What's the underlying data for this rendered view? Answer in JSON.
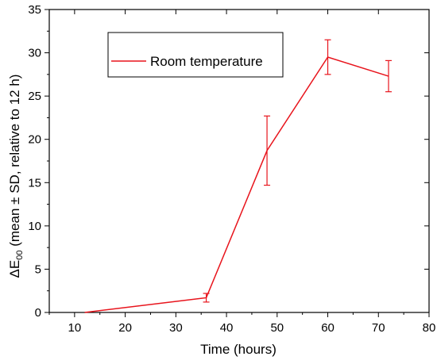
{
  "chart_data": {
    "type": "line",
    "xlabel": "Time (hours)",
    "ylabel": {
      "prefix": "ΔE",
      "subscript": "00",
      "suffix": " (mean ± SD, relative to 12 h)"
    },
    "xlim": [
      5,
      80
    ],
    "ylim": [
      0,
      35
    ],
    "xticks": [
      10,
      20,
      30,
      40,
      50,
      60,
      70,
      80
    ],
    "yticks": [
      0,
      5,
      10,
      15,
      20,
      25,
      30,
      35
    ],
    "grid": false,
    "legend_position": "top-left",
    "series": [
      {
        "name": "Room temperature",
        "color": "#e8141c",
        "points": [
          {
            "x": 12,
            "y": 0.0,
            "sd": 0.0
          },
          {
            "x": 36,
            "y": 1.7,
            "sd": 0.5
          },
          {
            "x": 48,
            "y": 18.7,
            "sd": 4.0
          },
          {
            "x": 60,
            "y": 29.5,
            "sd": 2.0
          },
          {
            "x": 72,
            "y": 27.3,
            "sd": 1.8
          }
        ]
      }
    ]
  }
}
